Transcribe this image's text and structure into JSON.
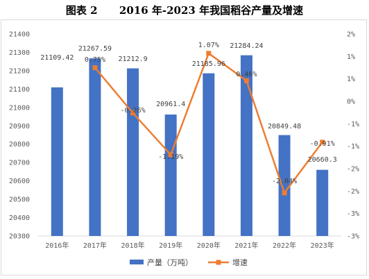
{
  "title": "图表 2      2016 年-2023 年我国稻谷产量及增速",
  "chart_data": {
    "type": "bar+line",
    "categories": [
      "2016年",
      "2017年",
      "2018年",
      "2019年",
      "2020年",
      "2021年",
      "2022年",
      "2023年"
    ],
    "series": [
      {
        "name": "产量（万吨）",
        "type": "bar",
        "axis": "left",
        "color": "#4472c4",
        "values": [
          21109.42,
          21267.59,
          21212.9,
          20961.4,
          21185.96,
          21284.24,
          20849.48,
          20660.3
        ],
        "labels": [
          "21109.42",
          "21267.59",
          "21212.9",
          "20961.4",
          "21185.96",
          "21284.24",
          "20849.48",
          "20660.3"
        ]
      },
      {
        "name": "增速",
        "type": "line",
        "axis": "right",
        "color": "#ed7d31",
        "values": [
          null,
          0.75,
          -0.26,
          -1.19,
          1.07,
          0.46,
          -2.04,
          -0.91
        ],
        "labels": [
          "",
          "0.75%",
          "-0.26%",
          "-1.19%",
          "1.07%",
          "0.46%",
          "-2.04%",
          "-0.91%"
        ]
      }
    ],
    "y_left": {
      "range": [
        20300,
        21400
      ],
      "ticks": [
        "21400",
        "21300",
        "21200",
        "21100",
        "21000",
        "20900",
        "20800",
        "20700",
        "20600",
        "20500",
        "20400",
        "20300"
      ]
    },
    "y_right": {
      "range": [
        -3,
        1.5
      ],
      "ticks": [
        "2%",
        "1%",
        "1%",
        "0%",
        "-1%",
        "-1%",
        "-2%",
        "-2%",
        "-3%",
        "-3%"
      ]
    },
    "grid": false,
    "legend_position": "bottom"
  }
}
